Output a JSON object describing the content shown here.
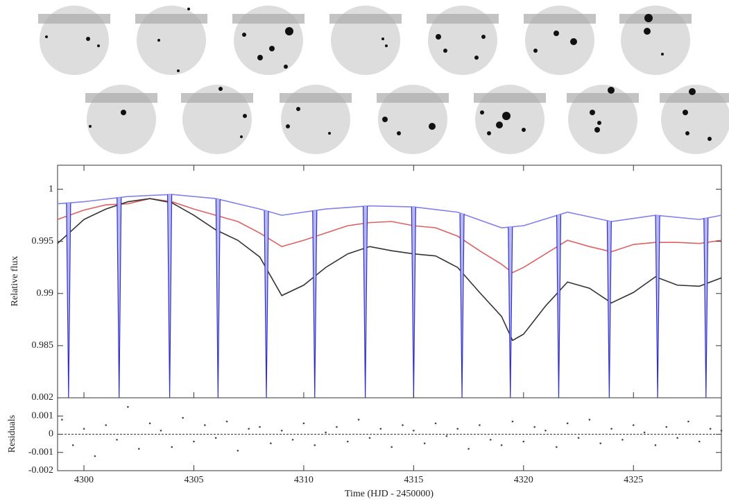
{
  "chart_data": [
    {
      "type": "line",
      "ylabel": "Relative flux",
      "xlim": [
        4298.8,
        4329
      ],
      "ylim": [
        0.98,
        1.0023
      ],
      "yticks": [
        {
          "value": 0.985,
          "label": "0.985"
        },
        {
          "value": 0.99,
          "label": "0.99"
        },
        {
          "value": 0.995,
          "label": "0.995"
        },
        {
          "value": 1,
          "label": "1"
        }
      ],
      "series": [
        {
          "color": "#8080ee",
          "x": [
            4298.8,
            4300,
            4302,
            4304,
            4306,
            4308,
            4309,
            4311,
            4313,
            4315,
            4317,
            4319,
            4320,
            4322,
            4324,
            4326,
            4328,
            4329
          ],
          "values": [
            0.9986,
            0.9988,
            0.9993,
            0.9995,
            0.9991,
            0.9981,
            0.9975,
            0.9981,
            0.9984,
            0.9983,
            0.9978,
            0.9963,
            0.9965,
            0.9978,
            0.9969,
            0.9975,
            0.9971,
            0.9975
          ]
        },
        {
          "color": "#e06060",
          "x": [
            4298.8,
            4300,
            4301,
            4302,
            4303,
            4304,
            4305,
            4306,
            4307,
            4308,
            4309,
            4310,
            4311,
            4312,
            4313,
            4314,
            4315,
            4316,
            4317,
            4318,
            4319,
            4319.5,
            4320,
            4321,
            4322,
            4323,
            4324,
            4325,
            4326,
            4327,
            4328,
            4329
          ],
          "values": [
            0.9971,
            0.998,
            0.9985,
            0.9986,
            0.9991,
            0.9988,
            0.9981,
            0.9975,
            0.9969,
            0.9958,
            0.9945,
            0.9951,
            0.9958,
            0.9965,
            0.9968,
            0.9969,
            0.9965,
            0.9963,
            0.9955,
            0.9941,
            0.9928,
            0.992,
            0.9925,
            0.9938,
            0.9951,
            0.9945,
            0.994,
            0.9947,
            0.9949,
            0.9949,
            0.9948,
            0.9951
          ]
        },
        {
          "color": "#333333",
          "x": [
            4298.8,
            4300,
            4301,
            4302,
            4303,
            4304,
            4305,
            4306,
            4307,
            4308,
            4309,
            4310,
            4311,
            4312,
            4313,
            4314,
            4315,
            4316,
            4317,
            4318,
            4319,
            4319.5,
            4320,
            4321,
            4322,
            4323,
            4324,
            4325,
            4326,
            4327,
            4328,
            4329
          ],
          "values": [
            0.9948,
            0.9971,
            0.9981,
            0.9988,
            0.9991,
            0.9987,
            0.9975,
            0.9961,
            0.9951,
            0.9935,
            0.9898,
            0.9908,
            0.9925,
            0.9938,
            0.9945,
            0.9941,
            0.9938,
            0.9936,
            0.9925,
            0.9901,
            0.9878,
            0.9855,
            0.9861,
            0.9888,
            0.9911,
            0.9905,
            0.9891,
            0.9901,
            0.9916,
            0.9908,
            0.9907,
            0.9915
          ]
        }
      ],
      "transits": {
        "color": "#3030cc",
        "x": [
          4299.3,
          4301.6,
          4303.9,
          4306.1,
          4308.3,
          4310.5,
          4312.8,
          4315.0,
          4317.2,
          4319.4,
          4321.6,
          4323.9,
          4326.1,
          4328.3
        ],
        "values": [
          0.98,
          0.98,
          0.98,
          0.98,
          0.98,
          0.98,
          0.98,
          0.98,
          0.98,
          0.98,
          0.98,
          0.98,
          0.98,
          0.98
        ]
      }
    },
    {
      "type": "scatter",
      "ylabel": "Residuals",
      "xlabel": "Time (HJD - 2450000)",
      "xlim": [
        4298.8,
        4329
      ],
      "ylim": [
        -0.002,
        0.002
      ],
      "xticks": [
        4300,
        4305,
        4310,
        4315,
        4320,
        4325
      ],
      "yticks": [
        -0.002,
        -0.001,
        0,
        0.001,
        0.002
      ],
      "zero_line": true,
      "color": "#444444",
      "x": [
        4299,
        4299.5,
        4300,
        4300.5,
        4301,
        4301.5,
        4302,
        4302.5,
        4303,
        4303.5,
        4304,
        4304.5,
        4305,
        4305.5,
        4306,
        4306.5,
        4307,
        4307.5,
        4308,
        4308.5,
        4309,
        4309.5,
        4310,
        4310.5,
        4311,
        4311.5,
        4312,
        4312.5,
        4313,
        4313.5,
        4314,
        4314.5,
        4315,
        4315.5,
        4316,
        4316.5,
        4317,
        4317.5,
        4318,
        4318.5,
        4319,
        4319.5,
        4320,
        4320.5,
        4321,
        4321.5,
        4322,
        4322.5,
        4323,
        4323.5,
        4324,
        4324.5,
        4325,
        4325.5,
        4326,
        4326.5,
        4327,
        4327.5,
        4328,
        4328.5,
        4329
      ],
      "values": [
        0.0008,
        -0.0006,
        0.0003,
        -0.0012,
        0.0005,
        -0.0003,
        0.0015,
        -0.0008,
        0.0006,
        0.0002,
        -0.0007,
        0.0009,
        -0.0004,
        0.0005,
        -0.0002,
        0.0007,
        -0.0009,
        0.0003,
        0.0004,
        -0.0005,
        0.0002,
        -0.0003,
        0.0006,
        -0.0006,
        0.0001,
        0.0004,
        -0.0004,
        0.0008,
        -0.0002,
        0.0003,
        -0.0007,
        0.0005,
        0.0002,
        -0.0005,
        0.0006,
        -0.0001,
        0.0003,
        -0.0008,
        0.0005,
        -0.0003,
        -0.0006,
        0.0007,
        -0.0004,
        0.0004,
        0.0002,
        -0.0007,
        0.0006,
        -0.0002,
        0.0008,
        -0.0005,
        0.0003,
        -0.0003,
        0.0005,
        0.0001,
        -0.0006,
        0.0004,
        -0.0002,
        0.0007,
        -0.0004,
        0.0003,
        0.0002
      ]
    }
  ]
}
